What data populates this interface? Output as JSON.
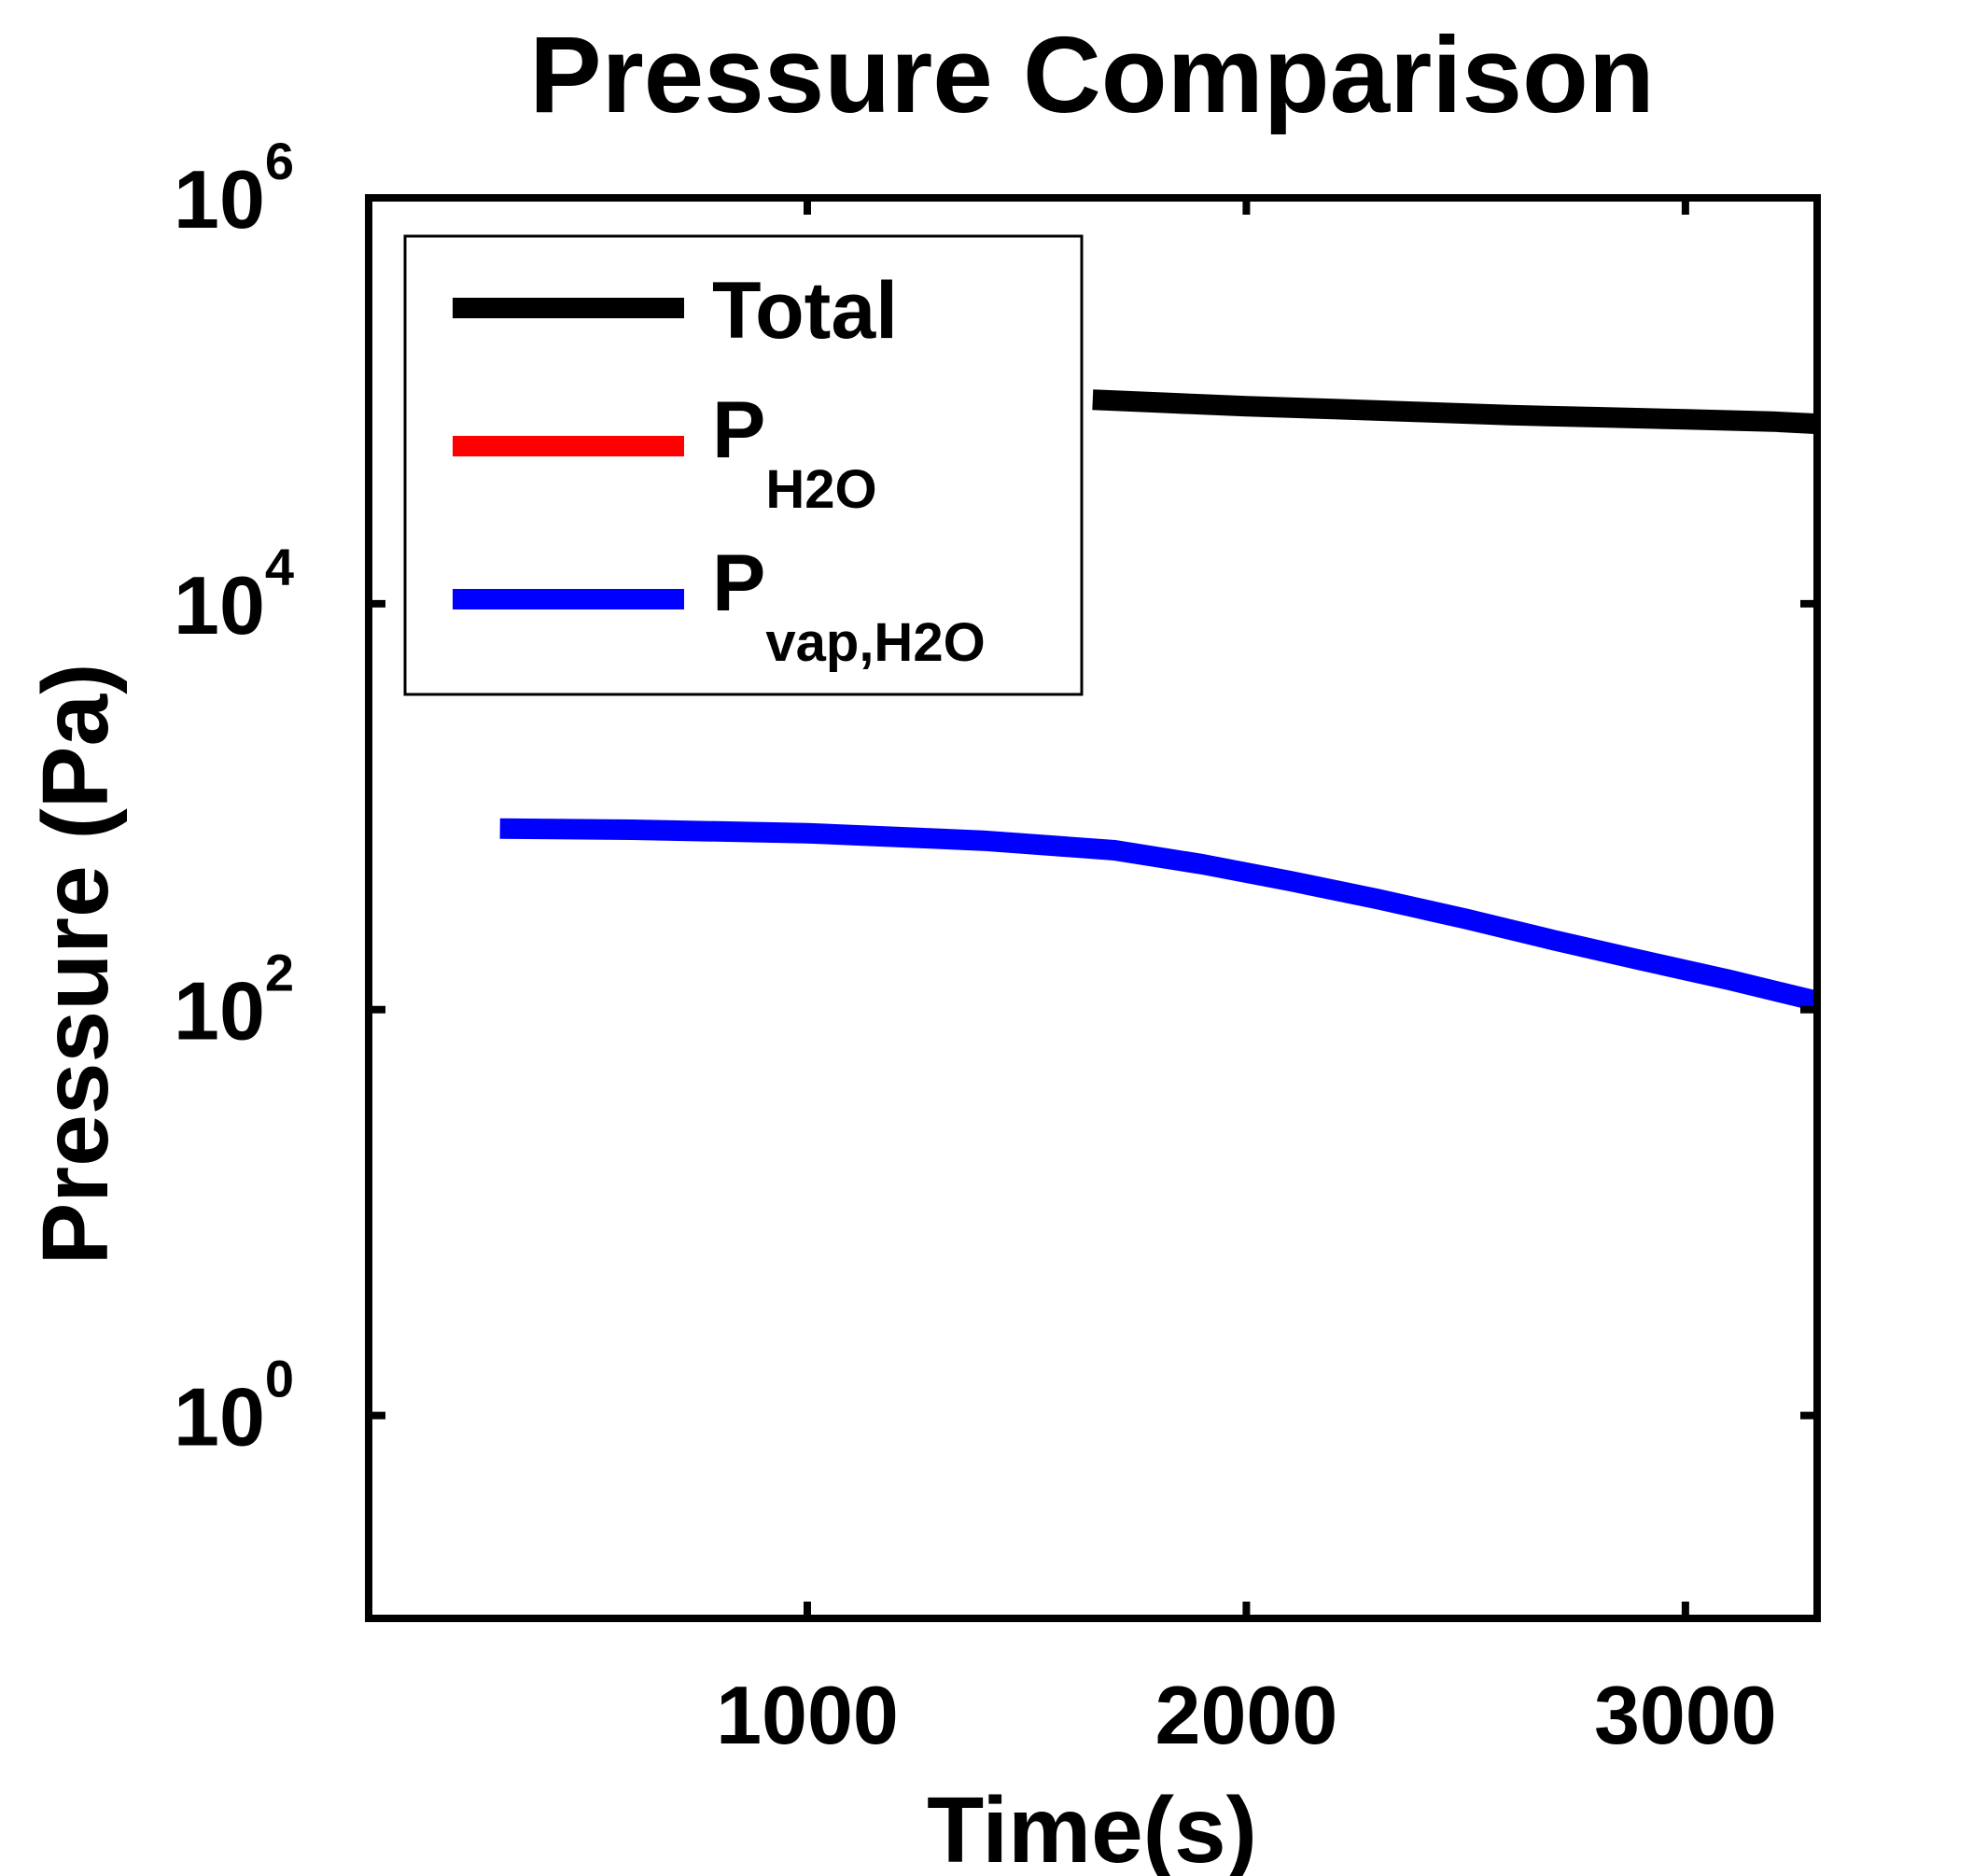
{
  "chart_data": {
    "type": "line",
    "title": "Pressure Comparison",
    "xlabel": "Time(s)",
    "ylabel": "Pressure (Pa)",
    "xlim": [
      1,
      3300
    ],
    "ylim": [
      0.1,
      1000000
    ],
    "yscale": "log",
    "grid": false,
    "legend_position": "top-left",
    "x_ticks": [
      {
        "value": 1000,
        "label": "1000"
      },
      {
        "value": 2000,
        "label": "2000"
      },
      {
        "value": 3000,
        "label": "3000"
      }
    ],
    "y_ticks": [
      {
        "value": 1,
        "base": "10",
        "exp": "0"
      },
      {
        "value": 100,
        "base": "10",
        "exp": "2"
      },
      {
        "value": 10000,
        "base": "10",
        "exp": "4"
      },
      {
        "value": 1000000,
        "base": "10",
        "exp": "6"
      }
    ],
    "series": [
      {
        "name": "Total",
        "name_main": "Total",
        "name_sub": "",
        "color": "#000000",
        "x": [
          1650,
          1800,
          2000,
          2200,
          2400,
          2600,
          2800,
          3000,
          3200,
          3300
        ],
        "y": [
          101325,
          98000,
          94000,
          91000,
          88000,
          85000,
          83000,
          81000,
          79000,
          77000
        ]
      },
      {
        "name": "PH2O",
        "name_main": "P",
        "name_sub": "H2O",
        "color": "#ff0000",
        "x": [],
        "y": []
      },
      {
        "name": "Pvap,H2O",
        "name_main": "P",
        "name_sub": "vap,H2O",
        "color": "#0000ff",
        "x": [
          300,
          600,
          1000,
          1400,
          1700,
          1900,
          2100,
          2300,
          2500,
          2700,
          2900,
          3100,
          3300
        ],
        "y": [
          780,
          770,
          740,
          680,
          610,
          520,
          430,
          350,
          280,
          220,
          175,
          140,
          110
        ]
      }
    ]
  }
}
